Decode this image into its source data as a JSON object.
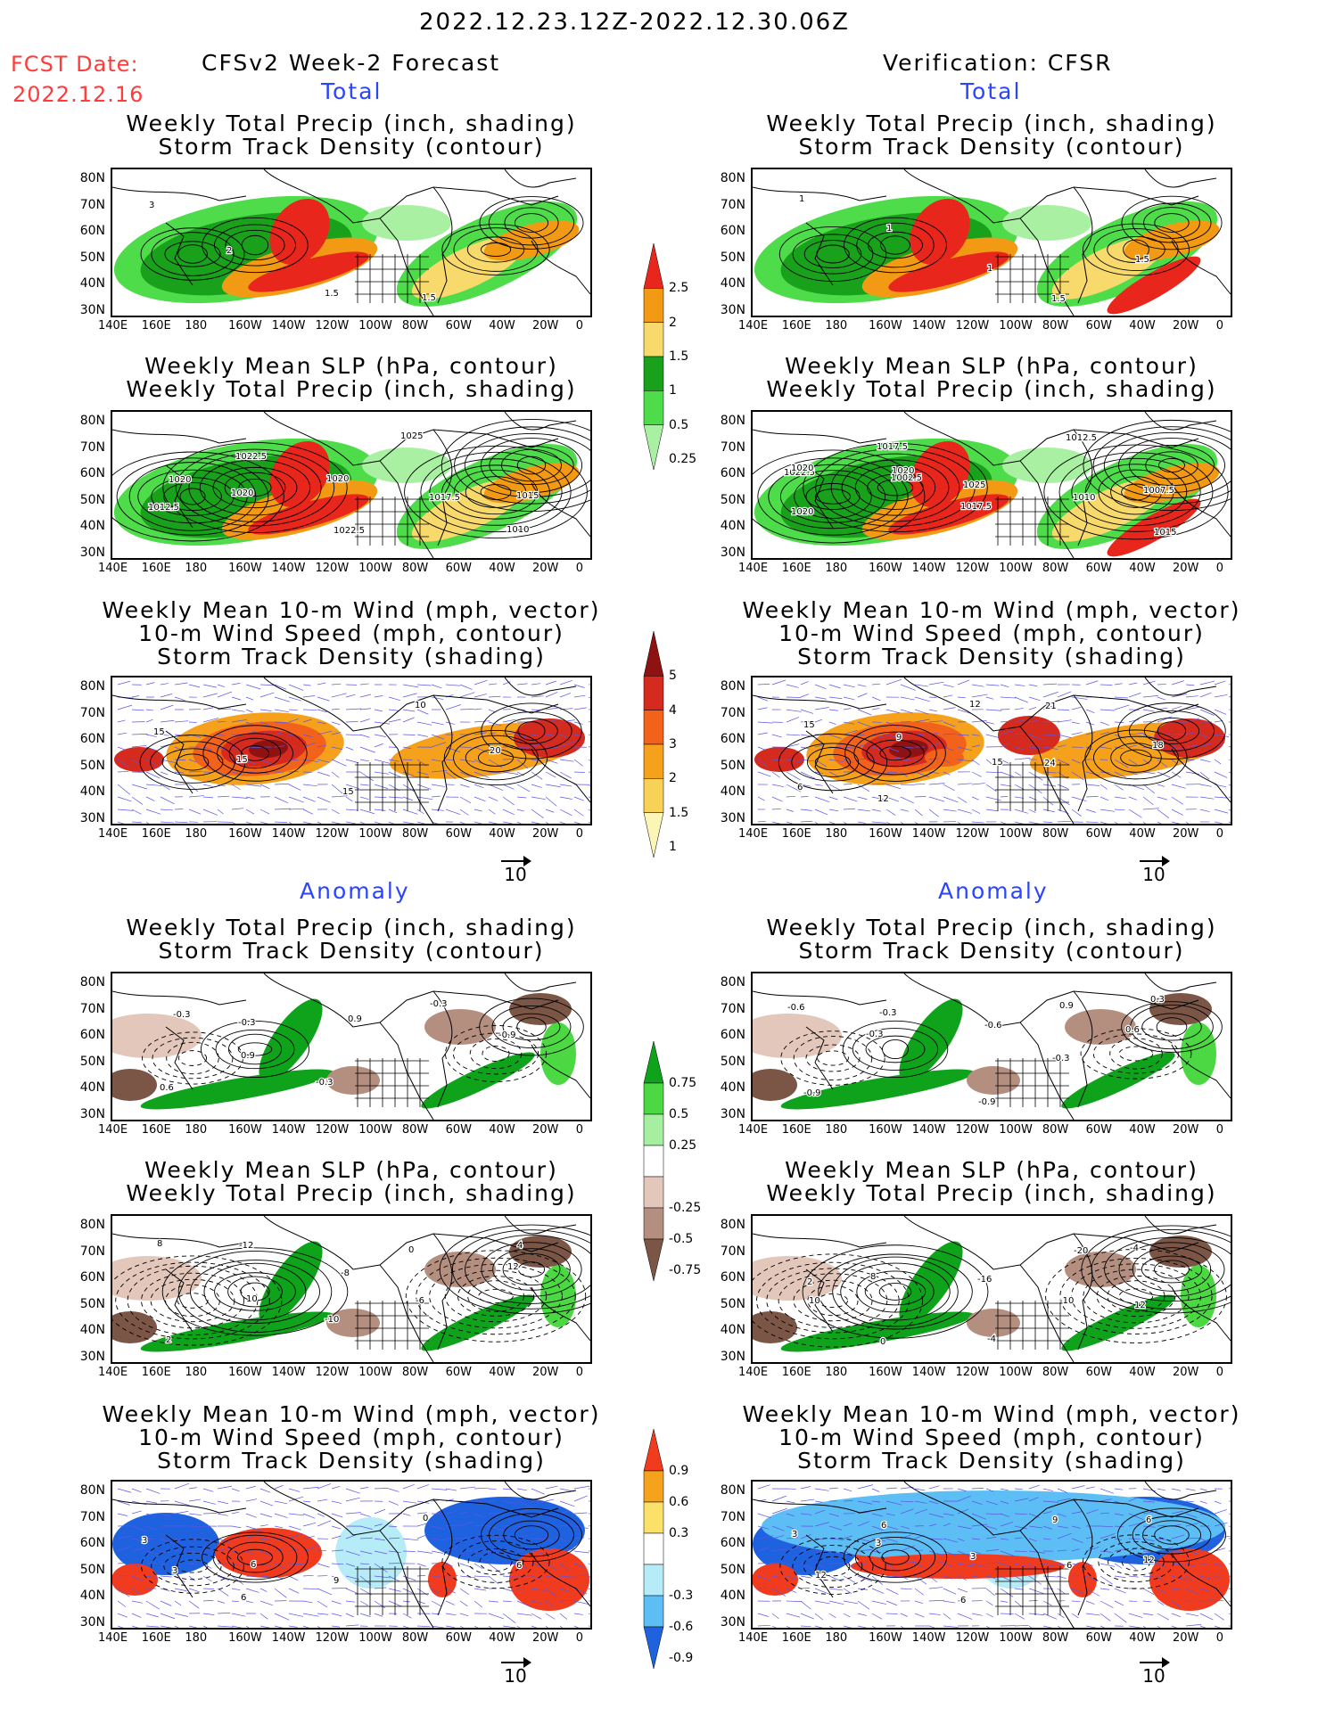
{
  "header": {
    "period": "2022.12.23.12Z-2022.12.30.06Z",
    "fcst_label": "FCST Date:",
    "fcst_date": "2022.12.16",
    "left_title": "CFSv2 Week-2 Forecast",
    "right_title": "Verification: CFSR"
  },
  "sections": {
    "total": "Total",
    "anomaly": "Anomaly"
  },
  "panel_titles": {
    "precip_track": [
      "Weekly Total Precip (inch, shading)",
      "Storm Track Density (contour)"
    ],
    "slp_precip": [
      "Weekly Mean SLP (hPa, contour)",
      "Weekly Total Precip (inch, shading)"
    ],
    "wind_track": [
      "Weekly Mean 10-m Wind (mph, vector)",
      "10-m Wind Speed (mph, contour)",
      "Storm Track Density (shading)"
    ]
  },
  "axes": {
    "lat_labels": [
      "80N",
      "70N",
      "60N",
      "50N",
      "40N",
      "30N"
    ],
    "lon_labels": [
      "140E",
      "160E",
      "180",
      "160W",
      "140W",
      "120W",
      "100W",
      "80W",
      "60W",
      "40W",
      "20W",
      "0"
    ]
  },
  "vector_reference": "10",
  "colorbars": {
    "precip_total": {
      "labels": [
        "2.5",
        "2",
        "1.5",
        "1",
        "0.5",
        "0.25"
      ],
      "colors": [
        "#e8261c",
        "#f39a14",
        "#f8d96c",
        "#19a11c",
        "#4fdc4b",
        "#a9f0a2"
      ]
    },
    "storm_total": {
      "labels": [
        "5",
        "4",
        "3",
        "2",
        "1.5",
        "1"
      ],
      "colors": [
        "#8f1212",
        "#d52a1e",
        "#f3621b",
        "#f5a11c",
        "#f8d257",
        "#fbf6b5"
      ]
    },
    "precip_anom": {
      "labels": [
        "0.75",
        "0.5",
        "0.25",
        "-0.25",
        "-0.5",
        "-0.75"
      ],
      "colors": [
        "#0fa31c",
        "#4cd843",
        "#a6efa0",
        "#ffffff",
        "#e3c7bb",
        "#b48f80",
        "#7b5646"
      ]
    },
    "storm_anom": {
      "labels": [
        "0.9",
        "0.6",
        "0.3",
        "-0.3",
        "-0.6",
        "-0.9"
      ],
      "colors": [
        "#f03b1e",
        "#f5a21c",
        "#fbe06a",
        "#ffffff",
        "#b6ecf7",
        "#5cbef4",
        "#1f62e0"
      ]
    }
  },
  "contour_labels": {
    "fc_total_precip": [
      "3",
      "2",
      "1.5",
      "1.5"
    ],
    "vr_total_precip": [
      "1",
      "1",
      "1",
      "1.5",
      "1.5"
    ],
    "fc_total_slp": [
      "1020",
      "1020",
      "1022.5",
      "1025",
      "1015",
      "1012.5",
      "1022.5",
      "1020",
      "1017.5",
      "1010"
    ],
    "vr_total_slp": [
      "1022.5",
      "1020",
      "1017.5",
      "1012.5",
      "1007.5",
      "1020",
      "1017.5",
      "1025",
      "1010",
      "1015",
      "1020",
      "1002.5"
    ],
    "fc_total_wind": [
      "15",
      "15",
      "15",
      "10",
      "20"
    ],
    "vr_total_wind": [
      "15",
      "9",
      "12",
      "21",
      "18",
      "6",
      "12",
      "15",
      "24"
    ],
    "fc_anom_precip": [
      "-0.3",
      "0.9",
      "-0.3",
      "-0.3",
      "-0.9",
      "0.6",
      "-0.3",
      "0.9"
    ],
    "vr_anom_precip": [
      "-0.6",
      "-0.3",
      "-0.9",
      "0.9",
      "0.6",
      "-0.9",
      "-0.3",
      "-0.6",
      "-0.3",
      "0.3"
    ],
    "fc_anom_slp": [
      "8",
      "10",
      "-10",
      "0",
      "12",
      "2",
      "-12",
      "-8",
      "-6",
      "4"
    ],
    "vr_anom_slp": [
      "2",
      "8",
      "-4",
      "-20",
      "12",
      "10",
      "0",
      "-16",
      "-10",
      "-4"
    ],
    "fc_anom_wind": [
      "3",
      "6",
      "9",
      "0",
      "6",
      "3",
      "6"
    ],
    "vr_anom_wind": [
      "3",
      "3",
      "6",
      "9",
      "12",
      "12",
      "6",
      "3",
      "6",
      "6"
    ]
  }
}
